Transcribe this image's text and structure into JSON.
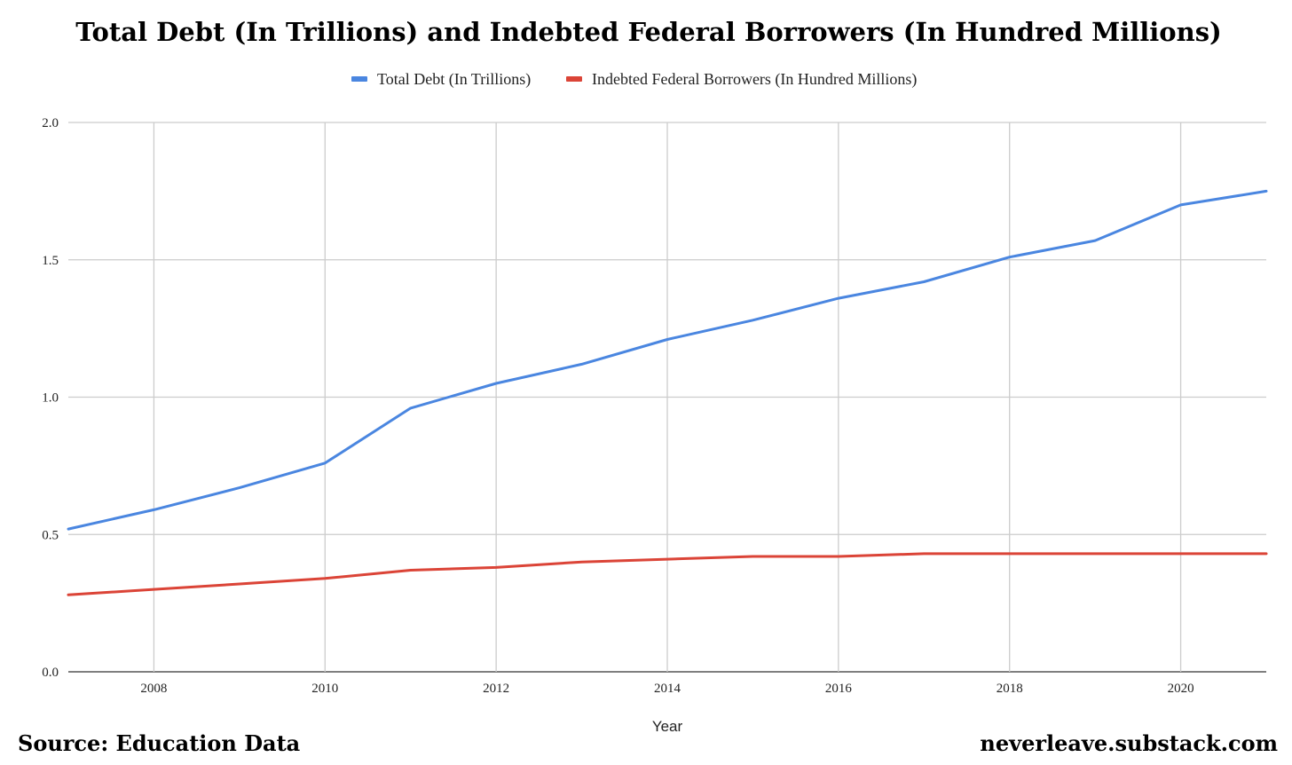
{
  "chart_data": {
    "type": "line",
    "title": "Total Debt (In Trillions) and Indebted Federal Borrowers (In Hundred Millions)",
    "xlabel": "Year",
    "ylabel": "",
    "x": [
      2007,
      2008,
      2009,
      2010,
      2011,
      2012,
      2013,
      2014,
      2015,
      2016,
      2017,
      2018,
      2019,
      2020,
      2021
    ],
    "xlim": [
      2007,
      2021
    ],
    "ylim": [
      0,
      2.0
    ],
    "x_ticks": [
      "2008",
      "2010",
      "2012",
      "2014",
      "2016",
      "2018",
      "2020"
    ],
    "y_ticks": [
      "0.0",
      "0.5",
      "1.0",
      "1.5",
      "2.0"
    ],
    "grid": true,
    "legend_position": "top",
    "series": [
      {
        "name": "Total Debt (In Trillions)",
        "color": "#4a86e0",
        "values": [
          0.52,
          0.59,
          0.67,
          0.76,
          0.96,
          1.05,
          1.12,
          1.21,
          1.28,
          1.36,
          1.42,
          1.51,
          1.57,
          1.7,
          1.75
        ]
      },
      {
        "name": "Indebted Federal Borrowers (In Hundred Millions)",
        "color": "#db4437",
        "values": [
          0.28,
          0.3,
          0.32,
          0.34,
          0.37,
          0.38,
          0.4,
          0.41,
          0.42,
          0.42,
          0.43,
          0.43,
          0.43,
          0.43,
          0.43
        ]
      }
    ]
  },
  "footer": {
    "source": "Source: Education Data",
    "site": "neverleave.substack.com"
  }
}
